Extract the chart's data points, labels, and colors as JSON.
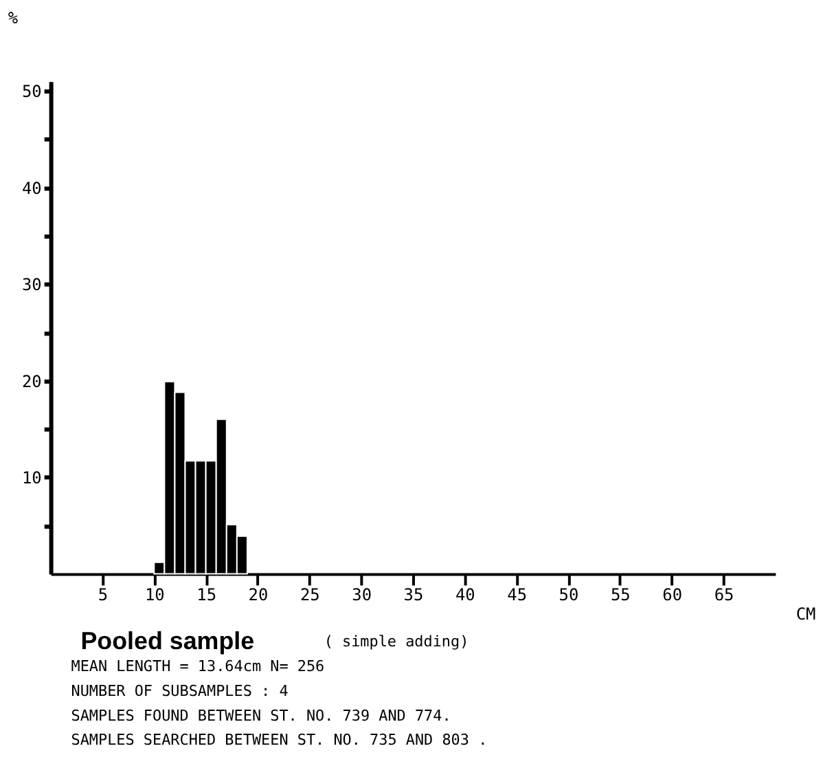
{
  "chart_data": {
    "type": "histogram",
    "title": "Pooled sample",
    "subtitle": "( simple adding)",
    "xlabel": "CM",
    "ylabel": "%",
    "bins": [
      10,
      11,
      12,
      13,
      14,
      15,
      16,
      17,
      18,
      19
    ],
    "values": [
      1.2,
      19.9,
      18.8,
      11.7,
      11.7,
      11.7,
      16.0,
      5.1,
      3.9
    ],
    "color": "#000000",
    "xlim": [
      0,
      70
    ],
    "ylim": [
      0,
      51
    ],
    "xticks": [
      5,
      10,
      15,
      20,
      25,
      30,
      35,
      40,
      45,
      50,
      55,
      60,
      65
    ],
    "yticks": [
      {
        "value": 5,
        "label": null
      },
      10,
      {
        "value": 15,
        "label": null
      },
      20,
      {
        "value": 25,
        "label": null
      },
      30,
      {
        "value": 35,
        "label": null
      },
      40,
      {
        "value": 45,
        "label": null
      },
      50
    ],
    "annotations": [
      "MEAN LENGTH = 13.64cm  N=  256",
      "NUMBER OF SUBSAMPLES :  4",
      "SAMPLES FOUND BETWEEN ST. NO. 739 AND  774.",
      "SAMPLES SEARCHED BETWEEN ST. NO. 735 AND  803 ."
    ]
  }
}
